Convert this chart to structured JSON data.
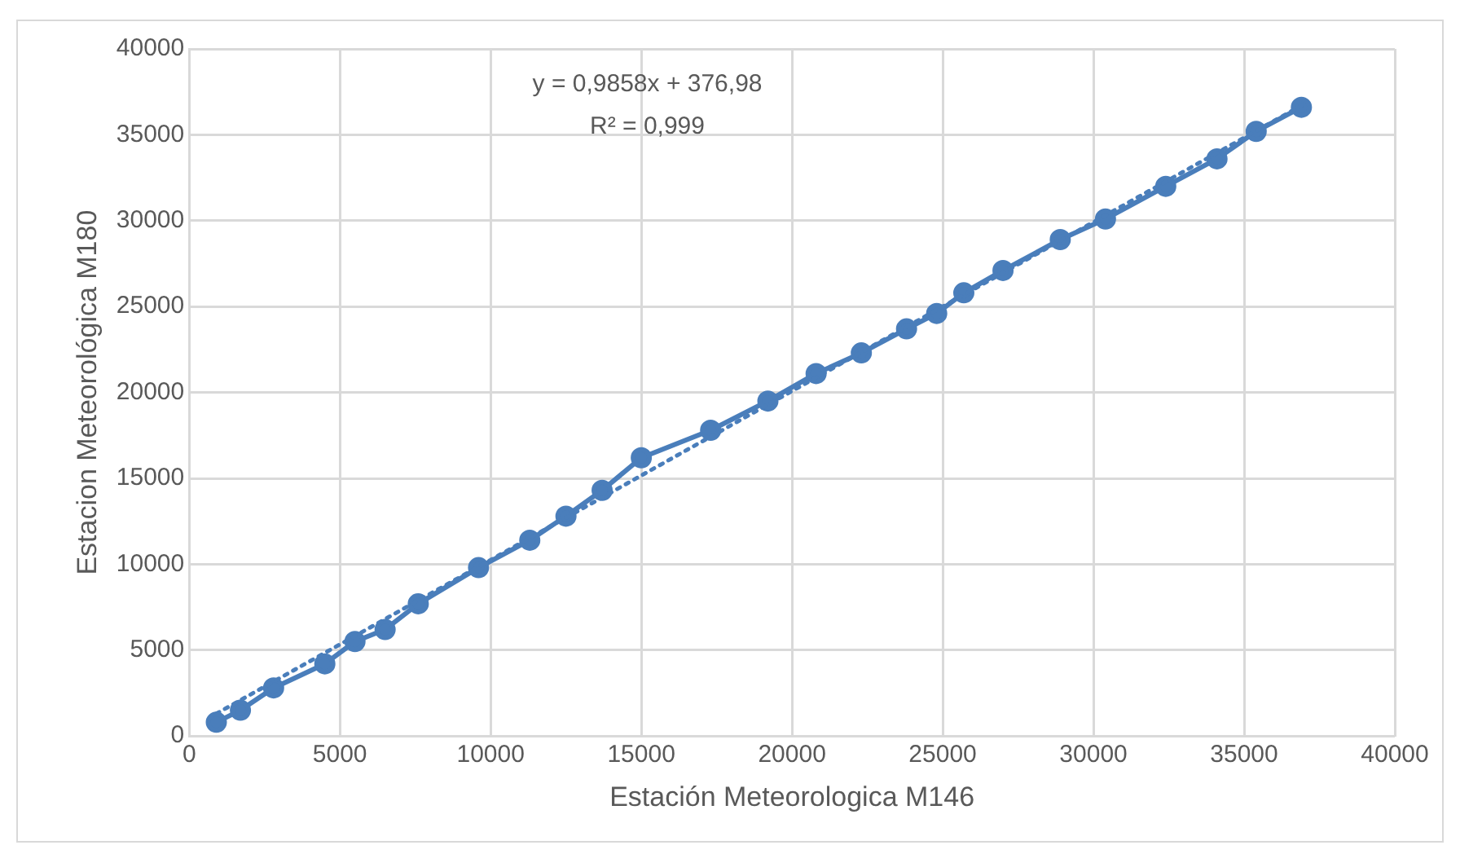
{
  "chart_data": {
    "type": "line",
    "xlabel": "Estación Meteorologica M146",
    "ylabel": "Estacion Meteorológica M180",
    "xlim": [
      0,
      40000
    ],
    "xticks": [
      0,
      5000,
      10000,
      15000,
      20000,
      25000,
      30000,
      35000,
      40000
    ],
    "ylim": [
      0,
      40000
    ],
    "yticks": [
      0,
      5000,
      10000,
      15000,
      20000,
      25000,
      30000,
      35000,
      40000
    ],
    "grid": true,
    "legend": false,
    "annotations": [
      "y = 0,9858x + 376,98",
      "R² = 0,999"
    ],
    "series": [
      {
        "color": "#4a7ebb",
        "marker": "circle",
        "line_style": "solid",
        "x": [
          900,
          1700,
          2800,
          4500,
          5500,
          6500,
          7600,
          9600,
          11300,
          12500,
          13700,
          15000,
          17300,
          19200,
          20800,
          22300,
          23800,
          24800,
          25700,
          27000,
          28900,
          30400,
          32400,
          34100,
          35400,
          36900
        ],
        "values": [
          800,
          1500,
          2800,
          4200,
          5500,
          6200,
          7700,
          9800,
          11400,
          12800,
          14300,
          16200,
          17800,
          19500,
          21100,
          22300,
          23700,
          24600,
          25800,
          27100,
          28900,
          30100,
          32000,
          33600,
          35200,
          36600
        ]
      },
      {
        "color": "#4a7ebb",
        "marker": "none",
        "line_style": "dotted",
        "x": [
          900,
          36900
        ],
        "values": [
          1300,
          36700
        ]
      }
    ]
  }
}
